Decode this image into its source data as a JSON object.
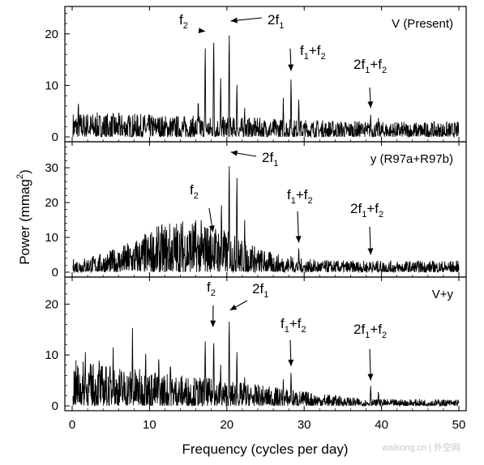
{
  "chart_data": [
    {
      "type": "line",
      "panel_label": "V (Present)",
      "ylim": [
        0,
        25
      ],
      "yticks": [
        0,
        10,
        20
      ],
      "peaks": [
        {
          "x": 17.2,
          "y": 19.0
        },
        {
          "x": 18.3,
          "y": 21.5
        },
        {
          "x": 19.2,
          "y": 12.0
        },
        {
          "x": 20.3,
          "y": 22.0
        },
        {
          "x": 21.3,
          "y": 11.0
        },
        {
          "x": 16.3,
          "y": 8.0
        },
        {
          "x": 22.3,
          "y": 6.0
        },
        {
          "x": 28.3,
          "y": 12.0
        },
        {
          "x": 27.3,
          "y": 8.0
        },
        {
          "x": 29.3,
          "y": 8.0
        },
        {
          "x": 38.6,
          "y": 4.6
        },
        {
          "x": 39.6,
          "y": 4.0
        },
        {
          "x": 37.6,
          "y": 2.5
        },
        {
          "x": 0.8,
          "y": 7.5
        },
        {
          "x": 2.0,
          "y": 5.0
        },
        {
          "x": 11.0,
          "y": 3.0
        }
      ],
      "noise_level": 2.6,
      "noise_falloff": 0.04,
      "annotations": [
        {
          "text": "f",
          "sub": "2",
          "suffix": "",
          "target_x": 17.2,
          "target_y": 20.5
        },
        {
          "text": "2f",
          "sub": "1",
          "suffix": "",
          "target_x": 20.5,
          "target_y": 22.5
        },
        {
          "text": "f",
          "sub": "1",
          "suffix": "+f",
          "sub2": "2",
          "target_x": 28.3,
          "target_y": 12.8
        },
        {
          "text": "2f",
          "sub": "1",
          "suffix": "+f",
          "sub2": "2",
          "target_x": 38.6,
          "target_y": 5.6
        }
      ]
    },
    {
      "type": "line",
      "panel_label": "y (R97a+R97b)",
      "ylim": [
        0,
        37
      ],
      "yticks": [
        0,
        10,
        20,
        30
      ],
      "peaks": [
        {
          "x": 18.2,
          "y": 11.0
        },
        {
          "x": 19.3,
          "y": 22.0
        },
        {
          "x": 20.3,
          "y": 34.0
        },
        {
          "x": 21.3,
          "y": 29.5
        },
        {
          "x": 22.3,
          "y": 16.0
        },
        {
          "x": 17.3,
          "y": 7.0
        },
        {
          "x": 23.3,
          "y": 8.0
        },
        {
          "x": 29.3,
          "y": 7.5
        },
        {
          "x": 28.3,
          "y": 5.0
        },
        {
          "x": 38.6,
          "y": 3.0
        }
      ],
      "noise_level": 3.2,
      "hump_center": 15.0,
      "hump_width": 8.5,
      "hump_height": 6.5,
      "annotations": [
        {
          "text": "f",
          "sub": "2",
          "suffix": "",
          "target_x": 18.2,
          "target_y": 11.5
        },
        {
          "text": "2f",
          "sub": "1",
          "suffix": "",
          "target_x": 20.5,
          "target_y": 34.5
        },
        {
          "text": "f",
          "sub": "1",
          "suffix": "+f",
          "sub2": "2",
          "target_x": 29.3,
          "target_y": 8.5
        },
        {
          "text": "2f",
          "sub": "1",
          "suffix": "+f",
          "sub2": "2",
          "target_x": 38.6,
          "target_y": 5.0
        }
      ]
    },
    {
      "type": "line",
      "panel_label": "V+y",
      "ylim": [
        0,
        25
      ],
      "yticks": [
        0,
        10,
        20
      ],
      "peaks": [
        {
          "x": 17.2,
          "y": 14.0
        },
        {
          "x": 18.3,
          "y": 14.5
        },
        {
          "x": 19.2,
          "y": 8.5
        },
        {
          "x": 20.3,
          "y": 18.5
        },
        {
          "x": 21.3,
          "y": 11.5
        },
        {
          "x": 22.3,
          "y": 6.0
        },
        {
          "x": 7.8,
          "y": 15.5
        },
        {
          "x": 5.3,
          "y": 12.0
        },
        {
          "x": 9.5,
          "y": 11.5
        },
        {
          "x": 1.7,
          "y": 11.0
        },
        {
          "x": 3.5,
          "y": 10.5
        },
        {
          "x": 11.2,
          "y": 11.0
        },
        {
          "x": 12.7,
          "y": 9.5
        },
        {
          "x": 28.3,
          "y": 7.0
        },
        {
          "x": 27.3,
          "y": 5.5
        },
        {
          "x": 38.6,
          "y": 4.2
        },
        {
          "x": 39.6,
          "y": 3.0
        }
      ],
      "noise_level": 4.8,
      "noise_falloff": 0.09,
      "annotations": [
        {
          "text": "f",
          "sub": "2",
          "suffix": "",
          "target_x": 18.2,
          "target_y": 15.5
        },
        {
          "text": "2f",
          "sub": "1",
          "suffix": "",
          "target_x": 20.4,
          "target_y": 18.8
        },
        {
          "text": "f",
          "sub": "1",
          "suffix": "+f",
          "sub2": "2",
          "target_x": 28.3,
          "target_y": 7.8
        },
        {
          "text": "2f",
          "sub": "1",
          "suffix": "+f",
          "sub2": "2",
          "target_x": 38.6,
          "target_y": 5.0
        }
      ]
    }
  ],
  "xaxis": {
    "label": "Frequency (cycles per day)",
    "lim": [
      0,
      51
    ],
    "ticks": [
      "0",
      "10",
      "20",
      "30",
      "40",
      "50"
    ],
    "tick_values": [
      0,
      10,
      20,
      30,
      40,
      50
    ]
  },
  "yaxis": {
    "label_main": "Power (mmag",
    "label_sup": "2",
    "label_end": ")"
  },
  "watermark": "waikong.cn | 外空网"
}
